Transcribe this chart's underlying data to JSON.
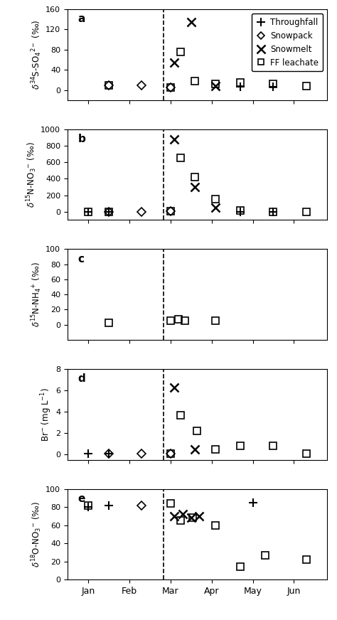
{
  "panels": [
    {
      "label": "a",
      "ylabel": "$\\delta^{34}$S-SO$_4$$^{2-}$ (‰)",
      "ylim": [
        -20,
        160
      ],
      "yticks": [
        0,
        40,
        80,
        120,
        160
      ],
      "data": {
        "throughfall": {
          "x": [
            4.7,
            5.5
          ],
          "y": [
            7,
            7
          ]
        },
        "snowpack": {
          "x": [
            1.5,
            2.3,
            3.0
          ],
          "y": [
            10,
            10,
            5
          ]
        },
        "snowmelt": {
          "x": [
            3.1,
            3.5,
            4.1
          ],
          "y": [
            55,
            135,
            8
          ]
        },
        "ff_leachate": {
          "x": [
            1.5,
            3.0,
            3.25,
            3.6,
            4.1,
            4.7,
            5.5,
            6.3
          ],
          "y": [
            10,
            5,
            75,
            18,
            12,
            15,
            12,
            8
          ]
        }
      }
    },
    {
      "label": "b",
      "ylabel": "$\\delta^{15}$N-NO$_3$$^{-}$ (‰)",
      "ylim": [
        -100,
        1000
      ],
      "yticks": [
        0,
        200,
        400,
        600,
        800,
        1000
      ],
      "data": {
        "throughfall": {
          "x": [
            1.0,
            1.5,
            4.7,
            5.5
          ],
          "y": [
            0,
            0,
            0,
            0
          ]
        },
        "snowpack": {
          "x": [
            1.5,
            2.3,
            3.0
          ],
          "y": [
            0,
            0,
            5
          ]
        },
        "snowmelt": {
          "x": [
            3.1,
            3.6,
            4.1
          ],
          "y": [
            880,
            300,
            50
          ]
        },
        "ff_leachate": {
          "x": [
            1.0,
            1.5,
            3.0,
            3.25,
            3.6,
            4.1,
            4.7,
            5.5,
            6.3
          ],
          "y": [
            0,
            0,
            5,
            650,
            420,
            155,
            20,
            0,
            0
          ]
        }
      }
    },
    {
      "label": "c",
      "ylabel": "$\\delta^{15}$N-NH$_4$$^{+}$ (‰)",
      "ylim": [
        -20,
        100
      ],
      "yticks": [
        0,
        20,
        40,
        60,
        80,
        100
      ],
      "data": {
        "throughfall": {
          "x": [],
          "y": []
        },
        "snowpack": {
          "x": [],
          "y": []
        },
        "snowmelt": {
          "x": [],
          "y": []
        },
        "ff_leachate": {
          "x": [
            1.5,
            3.0,
            3.2,
            3.35,
            4.1
          ],
          "y": [
            3,
            5,
            7,
            5,
            5
          ]
        }
      }
    },
    {
      "label": "d",
      "ylabel": "Br$^{-}$ (mg L$^{-1}$)",
      "ylim": [
        -0.5,
        8
      ],
      "yticks": [
        0,
        2,
        4,
        6,
        8
      ],
      "data": {
        "throughfall": {
          "x": [
            1.0,
            1.5
          ],
          "y": [
            0.1,
            0.05
          ]
        },
        "snowpack": {
          "x": [
            1.5,
            2.3,
            3.0
          ],
          "y": [
            0.1,
            0.1,
            0.1
          ]
        },
        "snowmelt": {
          "x": [
            3.1,
            3.6
          ],
          "y": [
            6.3,
            0.5
          ]
        },
        "ff_leachate": {
          "x": [
            3.0,
            3.25,
            3.65,
            4.1,
            4.7,
            5.5,
            6.3
          ],
          "y": [
            0.05,
            3.7,
            2.2,
            0.5,
            0.8,
            0.8,
            0.05
          ]
        }
      }
    },
    {
      "label": "e",
      "ylabel": "$\\delta^{18}$O-NO$_3$$^{-}$ (‰)",
      "ylim": [
        0,
        100
      ],
      "yticks": [
        0,
        20,
        40,
        60,
        80,
        100
      ],
      "data": {
        "throughfall": {
          "x": [
            1.0,
            1.5,
            5.0
          ],
          "y": [
            80,
            82,
            85
          ]
        },
        "snowpack": {
          "x": [
            2.3
          ],
          "y": [
            82
          ]
        },
        "snowmelt": {
          "x": [
            3.1,
            3.3,
            3.5,
            3.7
          ],
          "y": [
            70,
            72,
            68,
            70
          ]
        },
        "ff_leachate": {
          "x": [
            1.0,
            3.0,
            3.25,
            3.55,
            4.1,
            4.7,
            5.3,
            6.3
          ],
          "y": [
            82,
            84,
            65,
            68,
            60,
            14,
            27,
            22
          ]
        }
      }
    }
  ],
  "month_positions": [
    1.0,
    2.0,
    3.0,
    4.0,
    5.0,
    6.0
  ],
  "month_labels": [
    "Jan",
    "Feb",
    "Mar",
    "Apr",
    "May",
    "Jun"
  ],
  "dashed_line_x": 2.83,
  "xlim": [
    0.5,
    6.8
  ],
  "marker_size": 7,
  "legend_labels": [
    "Throughfall",
    "Snowpack",
    "Snowmelt",
    "FF leachate"
  ]
}
